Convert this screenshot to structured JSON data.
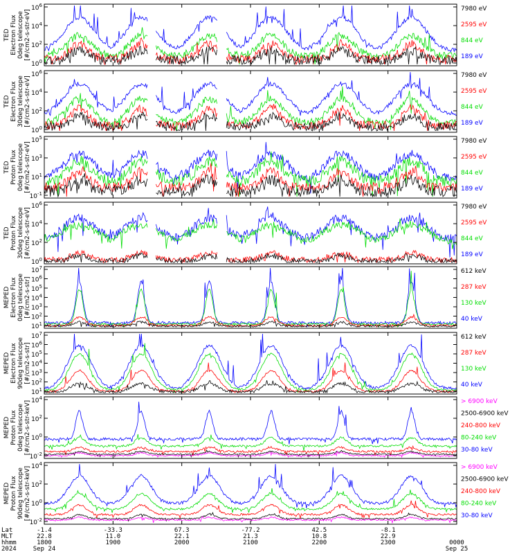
{
  "colors": {
    "blue": "#0000ff",
    "red": "#ff0000",
    "green": "#00dd00",
    "black": "#000000",
    "magenta": "#ff00ff"
  },
  "chart_data": [
    {
      "type": "line",
      "panel": 1,
      "ylabel": [
        "TED",
        "Electron Flux",
        "0deg telescope",
        "[#/cm2-s-str-eV]"
      ],
      "yticks": [
        "10^6",
        "10^4",
        "10^2",
        "10^0"
      ],
      "ylog": [
        0,
        6
      ],
      "series": [
        {
          "name": "7980 eV",
          "color": "black"
        },
        {
          "name": "2595 eV",
          "color": "red"
        },
        {
          "name": "844 eV",
          "color": "green"
        },
        {
          "name": "189 eV",
          "color": "blue"
        }
      ]
    },
    {
      "type": "line",
      "panel": 2,
      "ylabel": [
        "TED",
        "Electron Flux",
        "30deg telescope",
        "[#/cm2-s-str-eV]"
      ],
      "yticks": [
        "10^6",
        "10^4",
        "10^2",
        "10^0"
      ],
      "ylog": [
        0,
        6
      ],
      "series": [
        {
          "name": "7980 eV",
          "color": "black"
        },
        {
          "name": "2595 eV",
          "color": "red"
        },
        {
          "name": "844 eV",
          "color": "green"
        },
        {
          "name": "189 eV",
          "color": "blue"
        }
      ]
    },
    {
      "type": "line",
      "panel": 3,
      "ylabel": [
        "TED",
        "Proton Flux",
        "0deg telescope",
        "[#/cm2-s-str-eV]"
      ],
      "yticks": [
        "10^5",
        "10^3",
        "10^1",
        "10^-1"
      ],
      "ylog": [
        -1,
        5
      ],
      "series": [
        {
          "name": "7980 eV",
          "color": "black"
        },
        {
          "name": "2595 eV",
          "color": "red"
        },
        {
          "name": "844 eV",
          "color": "green"
        },
        {
          "name": "189 eV",
          "color": "blue"
        }
      ]
    },
    {
      "type": "line",
      "panel": 4,
      "ylabel": [
        "TED",
        "Proton Flux",
        "30deg telescope",
        "[#/cm2-s-str-eV]"
      ],
      "yticks": [
        "10^6",
        "10^4",
        "10^2",
        "10^0"
      ],
      "ylog": [
        0,
        6
      ],
      "series": [
        {
          "name": "7980 eV",
          "color": "black"
        },
        {
          "name": "2595 eV",
          "color": "red"
        },
        {
          "name": "844 eV",
          "color": "green"
        },
        {
          "name": "189 eV",
          "color": "blue"
        }
      ]
    },
    {
      "type": "line",
      "panel": 5,
      "ylabel": [
        "MEPED",
        "Electron Flux",
        "0deg telescope",
        "[#/cm2-s-str]"
      ],
      "yticks": [
        "10^7",
        "10^6",
        "10^5",
        "10^4",
        "10^3",
        "10^2",
        "10^1"
      ],
      "ylog": [
        1,
        7
      ],
      "series": [
        {
          "name": "612 keV",
          "color": "black"
        },
        {
          "name": "287 keV",
          "color": "red"
        },
        {
          "name": "130 keV",
          "color": "green"
        },
        {
          "name": "40 keV",
          "color": "blue"
        }
      ]
    },
    {
      "type": "line",
      "panel": 6,
      "ylabel": [
        "MEPED",
        "Electron Flux",
        "90deg telescope",
        "[#/cm2-s-str]"
      ],
      "yticks": [
        "10^7",
        "10^6",
        "10^5",
        "10^4",
        "10^3",
        "10^2",
        "10^1"
      ],
      "ylog": [
        1,
        7
      ],
      "series": [
        {
          "name": "612 keV",
          "color": "black"
        },
        {
          "name": "287 keV",
          "color": "red"
        },
        {
          "name": "130 keV",
          "color": "green"
        },
        {
          "name": "40 keV",
          "color": "blue"
        }
      ]
    },
    {
      "type": "line",
      "panel": 7,
      "ylabel": [
        "MEPED",
        "Proton Flux",
        "0deg telescope",
        "[#/cm2-s-str-keV]"
      ],
      "yticks": [
        "10^4",
        "10^2",
        "10^0",
        "10^-2"
      ],
      "ylog": [
        -3,
        5
      ],
      "series": [
        {
          "name": "> 6900 keV",
          "color": "magenta"
        },
        {
          "name": "2500-6900 keV",
          "color": "black"
        },
        {
          "name": "240-800 keV",
          "color": "red"
        },
        {
          "name": "80-240 keV",
          "color": "green"
        },
        {
          "name": "30-80 keV",
          "color": "blue"
        }
      ]
    },
    {
      "type": "line",
      "panel": 8,
      "ylabel": [
        "MEPED",
        "Proton Flux",
        "90deg telescope",
        "[#/cm2-s-str-keV]"
      ],
      "yticks": [
        "10^4",
        "10^2",
        "10^0",
        "10^-2"
      ],
      "ylog": [
        -3,
        5
      ],
      "series": [
        {
          "name": "> 6900 keV",
          "color": "magenta"
        },
        {
          "name": "2500-6900 keV",
          "color": "black"
        },
        {
          "name": "240-800 keV",
          "color": "red"
        },
        {
          "name": "80-240 keV",
          "color": "green"
        },
        {
          "name": "30-80 keV",
          "color": "blue"
        }
      ]
    }
  ],
  "time_axis": {
    "row_labels": [
      "Lat",
      "MLT",
      "hhmm",
      "2024"
    ],
    "ticks": [
      {
        "lat": "-1.4",
        "mlt": "22.8",
        "hhmm": "1800",
        "date": "Sep 24"
      },
      {
        "lat": "-33.3",
        "mlt": "11.0",
        "hhmm": "1900",
        "date": ""
      },
      {
        "lat": "67.3",
        "mlt": "22.1",
        "hhmm": "2000",
        "date": ""
      },
      {
        "lat": "-77.2",
        "mlt": "21.3",
        "hhmm": "2100",
        "date": ""
      },
      {
        "lat": "42.5",
        "mlt": "10.8",
        "hhmm": "2200",
        "date": ""
      },
      {
        "lat": "-8.1",
        "mlt": "22.9",
        "hhmm": "2300",
        "date": ""
      },
      {
        "lat": "",
        "mlt": "",
        "hhmm": "0000",
        "date": "Sep 25"
      }
    ]
  }
}
